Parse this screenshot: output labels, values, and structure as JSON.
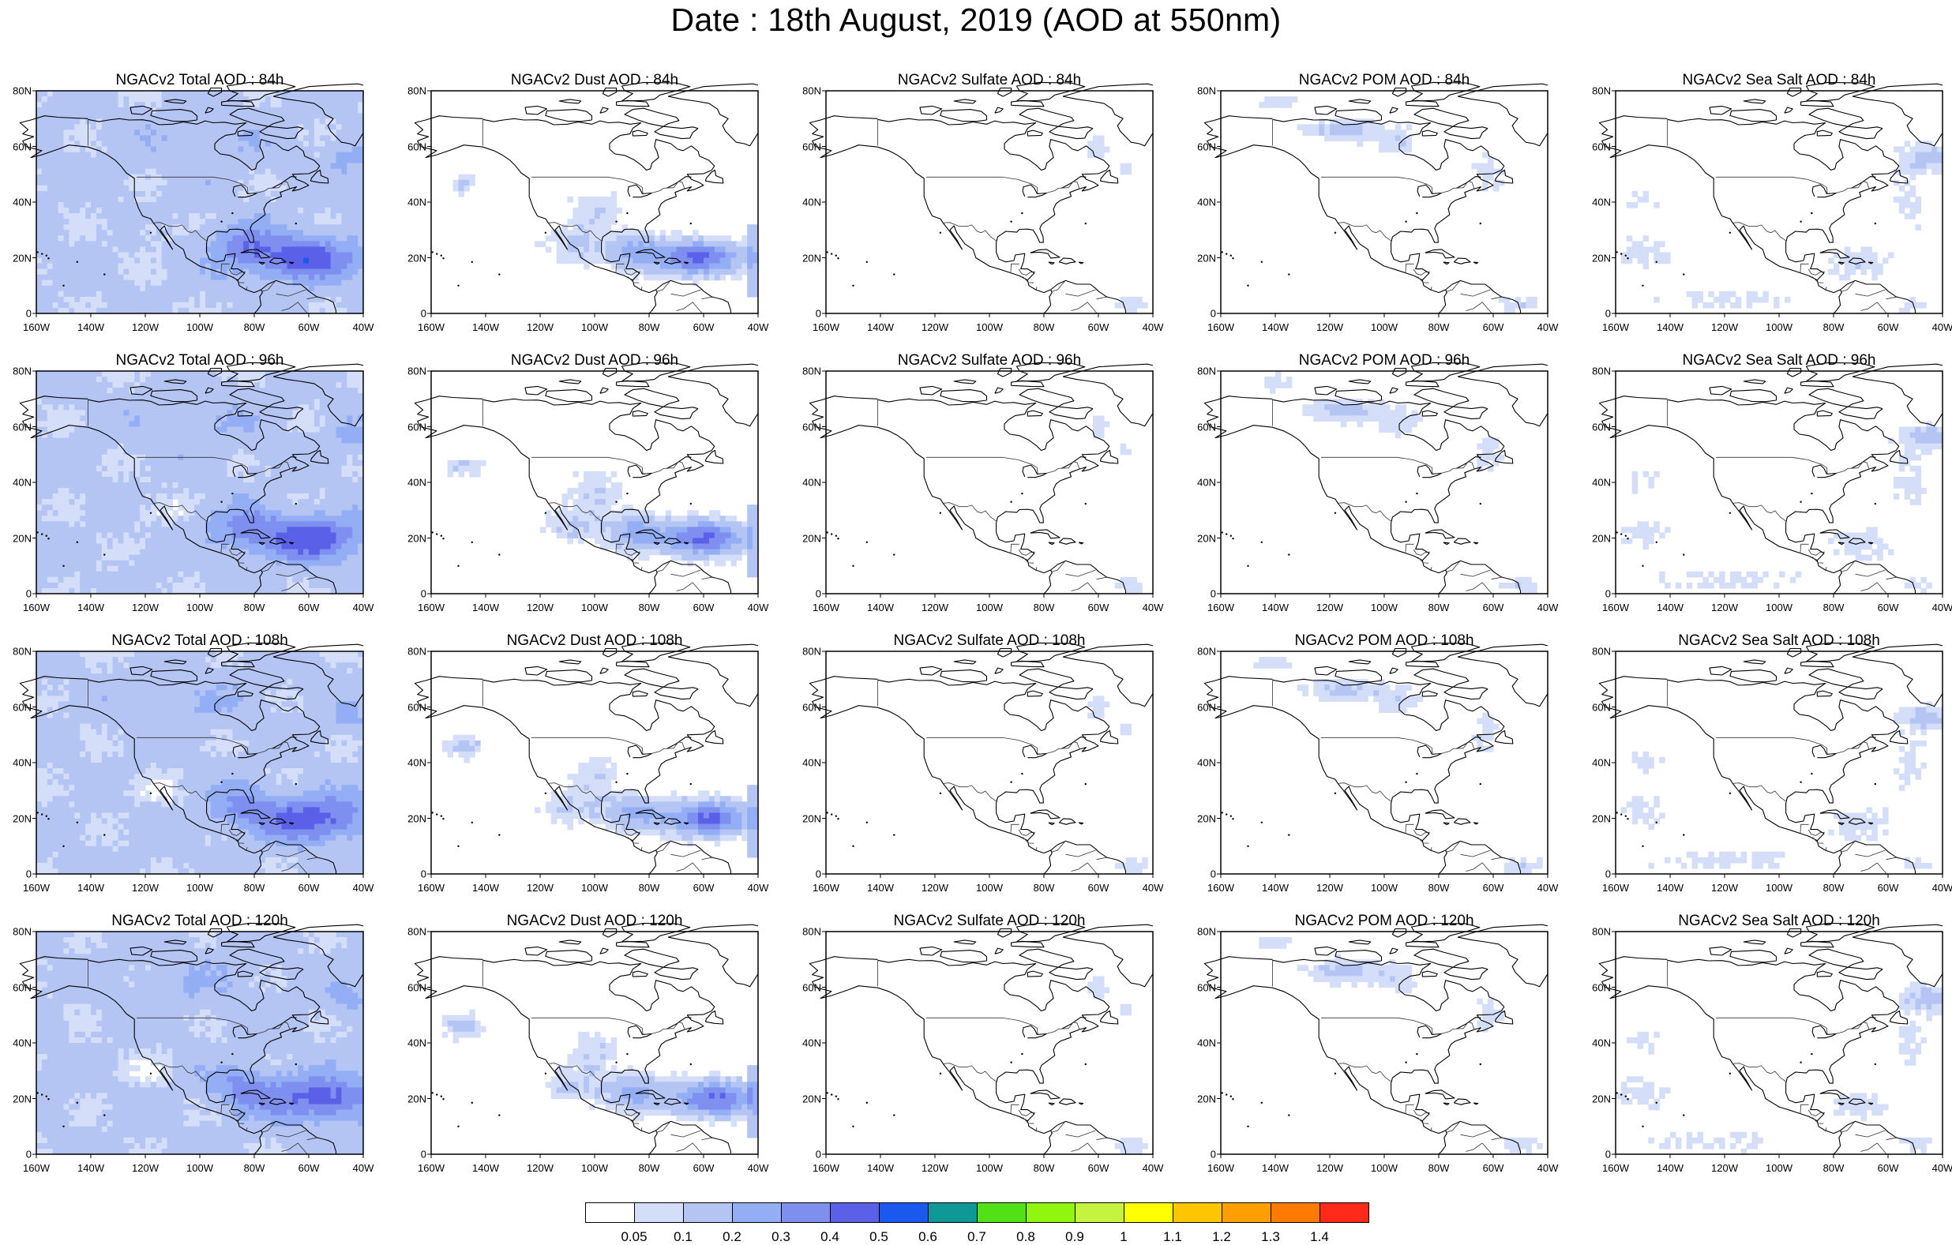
{
  "title": "Date : 18th August, 2019 (AOD at 550nm)",
  "map_grid": {
    "lon_range": [
      -160,
      -40
    ],
    "lat_range": [
      0,
      80
    ],
    "lat_ticks": [
      "0",
      "20N",
      "40N",
      "60N",
      "80N"
    ],
    "lon_ticks": [
      "160W",
      "140W",
      "120W",
      "100W",
      "80W",
      "60W",
      "40W"
    ]
  },
  "panels": [
    {
      "title": "NGACv2 Total AOD : 84h",
      "species": "total",
      "lead_hours": 84
    },
    {
      "title": "NGACv2 Dust AOD : 84h",
      "species": "dust",
      "lead_hours": 84
    },
    {
      "title": "NGACv2 Sulfate AOD : 84h",
      "species": "sulfate",
      "lead_hours": 84
    },
    {
      "title": "NGACv2 POM AOD : 84h",
      "species": "pom",
      "lead_hours": 84
    },
    {
      "title": "NGACv2 Sea Salt AOD : 84h",
      "species": "seasalt",
      "lead_hours": 84
    },
    {
      "title": "NGACv2 Total AOD : 96h",
      "species": "total",
      "lead_hours": 96
    },
    {
      "title": "NGACv2 Dust AOD : 96h",
      "species": "dust",
      "lead_hours": 96
    },
    {
      "title": "NGACv2 Sulfate AOD : 96h",
      "species": "sulfate",
      "lead_hours": 96
    },
    {
      "title": "NGACv2 POM AOD : 96h",
      "species": "pom",
      "lead_hours": 96
    },
    {
      "title": "NGACv2 Sea Salt AOD : 96h",
      "species": "seasalt",
      "lead_hours": 96
    },
    {
      "title": "NGACv2 Total AOD : 108h",
      "species": "total",
      "lead_hours": 108
    },
    {
      "title": "NGACv2 Dust AOD : 108h",
      "species": "dust",
      "lead_hours": 108
    },
    {
      "title": "NGACv2 Sulfate AOD : 108h",
      "species": "sulfate",
      "lead_hours": 108
    },
    {
      "title": "NGACv2 POM AOD : 108h",
      "species": "pom",
      "lead_hours": 108
    },
    {
      "title": "NGACv2 Sea Salt AOD : 108h",
      "species": "seasalt",
      "lead_hours": 108
    },
    {
      "title": "NGACv2 Total AOD : 120h",
      "species": "total",
      "lead_hours": 120
    },
    {
      "title": "NGACv2 Dust AOD : 120h",
      "species": "dust",
      "lead_hours": 120
    },
    {
      "title": "NGACv2 Sulfate AOD : 120h",
      "species": "sulfate",
      "lead_hours": 120
    },
    {
      "title": "NGACv2 POM AOD : 120h",
      "species": "pom",
      "lead_hours": 120
    },
    {
      "title": "NGACv2 Sea Salt  AOD : 120h",
      "species": "seasalt",
      "lead_hours": 120
    }
  ],
  "colorbar": {
    "labels": [
      "0.05",
      "0.1",
      "0.2",
      "0.3",
      "0.4",
      "0.5",
      "0.6",
      "0.7",
      "0.8",
      "0.9",
      "1",
      "1.1",
      "1.2",
      "1.3",
      "1.4"
    ],
    "colors": [
      "#ffffff",
      "#d4def8",
      "#b4c5f4",
      "#94aef5",
      "#7f8ff0",
      "#5a60e8",
      "#1a58ee",
      "#0e9896",
      "#52e016",
      "#91f60f",
      "#c6f43e",
      "#ffff00",
      "#ffc500",
      "#ff9e00",
      "#ff7a00",
      "#ff2a1a"
    ]
  }
}
